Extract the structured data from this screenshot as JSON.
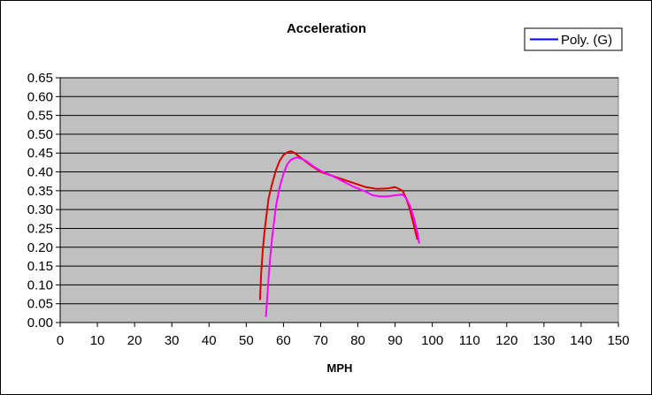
{
  "chart_data": {
    "type": "line",
    "title": "Acceleration",
    "xlabel": "MPH",
    "ylabel": "",
    "xlim": [
      0,
      150
    ],
    "ylim": [
      0,
      0.65
    ],
    "x_ticks": [
      0,
      10,
      20,
      30,
      40,
      50,
      60,
      70,
      80,
      90,
      100,
      110,
      120,
      130,
      140,
      150
    ],
    "y_ticks": [
      0.0,
      0.05,
      0.1,
      0.15,
      0.2,
      0.25,
      0.3,
      0.35,
      0.4,
      0.45,
      0.5,
      0.55,
      0.6,
      0.65
    ],
    "y_tick_labels": [
      "0.00",
      "0.05",
      "0.10",
      "0.15",
      "0.20",
      "0.25",
      "0.30",
      "0.35",
      "0.40",
      "0.45",
      "0.50",
      "0.55",
      "0.60",
      "0.65"
    ],
    "grid": "horizontal",
    "plot_background": "#c0c0c0",
    "legend": {
      "placement": "top-right",
      "entries": [
        {
          "label": "Poly. (G)",
          "color": "#0000ff"
        }
      ]
    },
    "series": [
      {
        "color": "#dd0000",
        "x": [
          53.7,
          54.0,
          54.5,
          55.0,
          55.5,
          56.0,
          57.0,
          58.0,
          59.0,
          60.0,
          61.0,
          62.0,
          63.0,
          65.0,
          67.0,
          70.0,
          73.0,
          76.0,
          79.0,
          82.0,
          85.0,
          88.0,
          90.0,
          92.0,
          93.0,
          94.0,
          95.0,
          95.5,
          96.0
        ],
        "y": [
          0.06,
          0.13,
          0.2,
          0.25,
          0.29,
          0.33,
          0.37,
          0.405,
          0.43,
          0.445,
          0.452,
          0.455,
          0.45,
          0.435,
          0.42,
          0.4,
          0.39,
          0.38,
          0.37,
          0.36,
          0.355,
          0.356,
          0.36,
          0.35,
          0.33,
          0.3,
          0.26,
          0.24,
          0.22
        ]
      },
      {
        "color": "#ff00ff",
        "x": [
          55.3,
          55.6,
          56.0,
          56.5,
          57.0,
          57.5,
          58.0,
          59.0,
          60.0,
          61.0,
          62.0,
          63.0,
          64.0,
          66.0,
          68.0,
          70.0,
          73.0,
          76.0,
          79.0,
          82.0,
          84.0,
          86.0,
          88.0,
          90.0,
          92.0,
          93.0,
          94.0,
          95.0,
          96.0,
          96.5
        ],
        "y": [
          0.015,
          0.06,
          0.12,
          0.18,
          0.23,
          0.27,
          0.31,
          0.36,
          0.395,
          0.42,
          0.432,
          0.437,
          0.438,
          0.43,
          0.415,
          0.403,
          0.39,
          0.375,
          0.36,
          0.348,
          0.338,
          0.335,
          0.335,
          0.338,
          0.34,
          0.33,
          0.31,
          0.28,
          0.24,
          0.21
        ]
      }
    ]
  }
}
